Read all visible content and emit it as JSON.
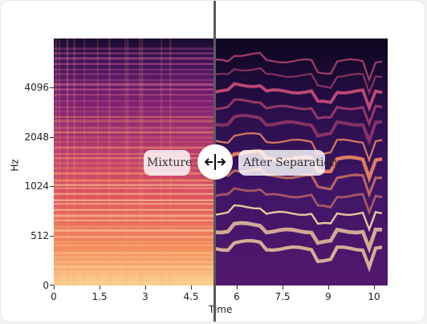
{
  "y_axis": {
    "label": "Hz",
    "ticks": [
      "4096",
      "2048",
      "1024",
      "512",
      "0"
    ]
  },
  "x_axis": {
    "label": "Time",
    "ticks": [
      "0",
      "1.5",
      "3",
      "4.5",
      "6",
      "7.5",
      "9",
      "10"
    ]
  },
  "slider": {
    "left_label": "Mixture",
    "right_label": "After Separation",
    "position_fraction": 0.48
  },
  "icons": {
    "handle": "arrows-left-right-icon"
  },
  "colors": {
    "card_bg": "#ffffff",
    "page_bg": "#f2f3f5",
    "divider": "#5a5a5a"
  }
}
